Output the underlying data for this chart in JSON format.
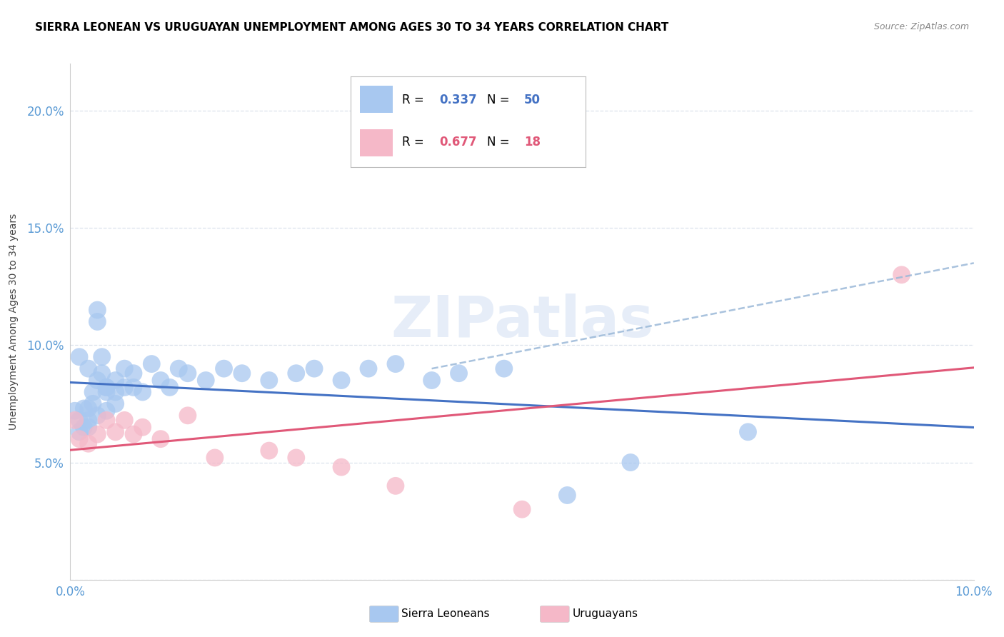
{
  "title": "SIERRA LEONEAN VS URUGUAYAN UNEMPLOYMENT AMONG AGES 30 TO 34 YEARS CORRELATION CHART",
  "source": "Source: ZipAtlas.com",
  "ylabel": "Unemployment Among Ages 30 to 34 years",
  "xlim": [
    0.0,
    0.1
  ],
  "ylim": [
    0.0,
    0.22
  ],
  "xticks": [
    0.0,
    0.02,
    0.04,
    0.06,
    0.08,
    0.1
  ],
  "yticks": [
    0.0,
    0.05,
    0.1,
    0.15,
    0.2
  ],
  "sierra_x": [
    0.0005,
    0.001,
    0.001,
    0.001,
    0.0015,
    0.0015,
    0.002,
    0.002,
    0.002,
    0.002,
    0.0025,
    0.0025,
    0.003,
    0.003,
    0.003,
    0.003,
    0.0035,
    0.0035,
    0.004,
    0.004,
    0.004,
    0.004,
    0.005,
    0.005,
    0.005,
    0.006,
    0.006,
    0.007,
    0.007,
    0.008,
    0.009,
    0.01,
    0.011,
    0.012,
    0.013,
    0.015,
    0.017,
    0.019,
    0.022,
    0.025,
    0.027,
    0.03,
    0.033,
    0.036,
    0.04,
    0.043,
    0.048,
    0.055,
    0.062,
    0.075
  ],
  "sierra_y": [
    0.072,
    0.095,
    0.068,
    0.063,
    0.073,
    0.065,
    0.09,
    0.073,
    0.068,
    0.065,
    0.08,
    0.075,
    0.115,
    0.11,
    0.085,
    0.07,
    0.095,
    0.088,
    0.082,
    0.082,
    0.08,
    0.072,
    0.085,
    0.08,
    0.075,
    0.09,
    0.082,
    0.088,
    0.082,
    0.08,
    0.092,
    0.085,
    0.082,
    0.09,
    0.088,
    0.085,
    0.09,
    0.088,
    0.085,
    0.088,
    0.09,
    0.085,
    0.09,
    0.092,
    0.085,
    0.088,
    0.09,
    0.036,
    0.05,
    0.063
  ],
  "uruguay_x": [
    0.0005,
    0.001,
    0.002,
    0.003,
    0.004,
    0.005,
    0.006,
    0.007,
    0.008,
    0.01,
    0.013,
    0.016,
    0.022,
    0.025,
    0.03,
    0.036,
    0.05,
    0.092
  ],
  "uruguay_y": [
    0.068,
    0.06,
    0.058,
    0.062,
    0.068,
    0.063,
    0.068,
    0.062,
    0.065,
    0.06,
    0.07,
    0.052,
    0.055,
    0.052,
    0.048,
    0.04,
    0.03,
    0.13
  ],
  "sierra_color": "#a8c8f0",
  "uruguay_color": "#f5b8c8",
  "sierra_line_color": "#4472c4",
  "sierra_dash_color": "#9ab8d8",
  "uruguay_line_color": "#e05878",
  "r_sierra": 0.337,
  "n_sierra": 50,
  "r_uruguay": 0.677,
  "n_uruguay": 18,
  "watermark": "ZIPatlas",
  "axis_color": "#5b9bd5",
  "grid_color": "#d3dce8",
  "title_fontsize": 11,
  "label_fontsize": 10
}
